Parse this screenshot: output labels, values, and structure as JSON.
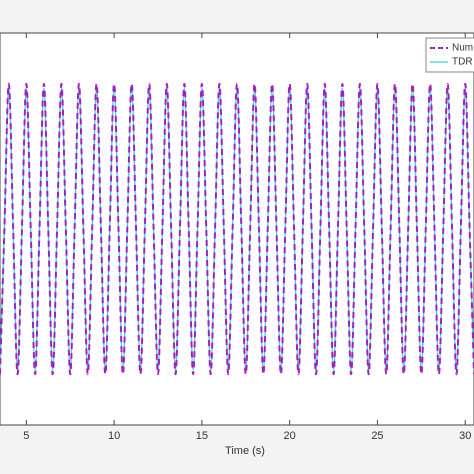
{
  "chart_data": {
    "type": "line",
    "x_label": "Time (s)",
    "x": [
      3.5,
      3.75,
      4,
      4.25,
      4.5,
      4.75,
      5,
      5.25,
      5.5,
      5.75,
      6,
      6.25,
      6.5,
      6.75,
      7,
      7.25,
      7.5,
      7.75,
      8,
      8.25,
      8.5,
      8.75,
      9,
      9.25,
      9.5,
      9.75,
      10,
      10.25,
      10.5,
      10.75,
      11,
      11.25,
      11.5,
      11.75,
      12,
      12.25,
      12.5,
      12.75,
      13,
      13.25,
      13.5,
      13.75,
      14,
      14.25,
      14.5,
      14.75,
      15,
      15.25,
      15.5,
      15.75,
      16,
      16.25,
      16.5,
      16.75,
      17,
      17.25,
      17.5,
      17.75,
      18,
      18.25,
      18.5,
      18.75,
      19,
      19.25,
      19.5,
      19.75,
      20,
      20.25,
      20.5,
      20.75,
      21,
      21.25,
      21.5,
      21.75,
      22,
      22.25,
      22.5,
      22.75,
      23,
      23.25,
      23.5,
      23.75,
      24,
      24.25,
      24.5,
      24.75,
      25,
      25.25,
      25.5,
      25.75,
      26,
      26.25,
      26.5,
      26.75,
      27,
      27.25,
      27.5,
      27.75,
      28,
      28.25,
      28.5,
      28.75,
      29,
      29.25,
      29.5,
      29.75,
      30,
      30.25,
      30.5
    ],
    "series": [
      {
        "name": "Num",
        "color": "#a020c0",
        "dash": true,
        "values": [
          -1,
          0,
          1,
          0,
          -1,
          0,
          1,
          0,
          -1,
          0,
          1,
          0,
          -1,
          0,
          1,
          0,
          -1,
          0,
          1,
          0,
          -1,
          0,
          1,
          0,
          -1,
          0,
          1,
          0,
          -1,
          0,
          1,
          0,
          -1,
          0,
          1,
          0,
          -1,
          0,
          1,
          0,
          -1,
          0,
          1,
          0,
          -1,
          0,
          1,
          0,
          -1,
          0,
          1,
          0,
          -1,
          0,
          1,
          0,
          -1,
          0,
          1,
          0,
          -1,
          0,
          1,
          0,
          -1,
          0,
          1,
          0,
          -1,
          0,
          1,
          0,
          -1,
          0,
          1,
          0,
          -1,
          0,
          1,
          0,
          -1,
          0,
          1,
          0,
          -1,
          0,
          1,
          0,
          -1,
          0,
          1,
          0,
          -1,
          0,
          1,
          0,
          -1,
          0,
          1,
          0,
          -1,
          0,
          1,
          0,
          -1,
          0,
          1,
          0,
          -1
        ]
      },
      {
        "name": "TDR",
        "color": "#40d0d0",
        "dash": false,
        "values": [
          -0.97,
          0,
          0.97,
          0,
          -0.97,
          0,
          0.97,
          0,
          -0.97,
          0,
          0.97,
          0,
          -0.97,
          0,
          0.97,
          0,
          -0.97,
          0,
          0.97,
          0,
          -0.97,
          0,
          0.97,
          0,
          -0.97,
          0,
          0.97,
          0,
          -0.97,
          0,
          0.97,
          0,
          -0.97,
          0,
          0.97,
          0,
          -0.97,
          0,
          0.97,
          0,
          -0.97,
          0,
          0.97,
          0,
          -0.97,
          0,
          0.97,
          0,
          -0.97,
          0,
          0.97,
          0,
          -0.97,
          0,
          0.97,
          0,
          -0.97,
          0,
          0.97,
          0,
          -0.97,
          0,
          0.97,
          0,
          -0.97,
          0,
          0.97,
          0,
          -0.97,
          0,
          0.97,
          0,
          -0.97,
          0,
          0.97,
          0,
          -0.97,
          0,
          0.97,
          0,
          -0.97,
          0,
          0.97,
          0,
          -0.97,
          0,
          0.97,
          0,
          -0.97,
          0,
          0.97,
          0,
          -0.97,
          0,
          0.97,
          0,
          -0.97,
          0,
          0.97,
          0,
          -0.97,
          0,
          0.97,
          0,
          -0.97,
          0,
          0.97,
          0,
          -0.97
        ]
      }
    ],
    "xlim": [
      3.5,
      30.5
    ],
    "xticks": [
      5,
      10,
      15,
      20,
      25,
      30
    ],
    "ylim": [
      -1.35,
      1.35
    ],
    "legend": "top-right"
  }
}
